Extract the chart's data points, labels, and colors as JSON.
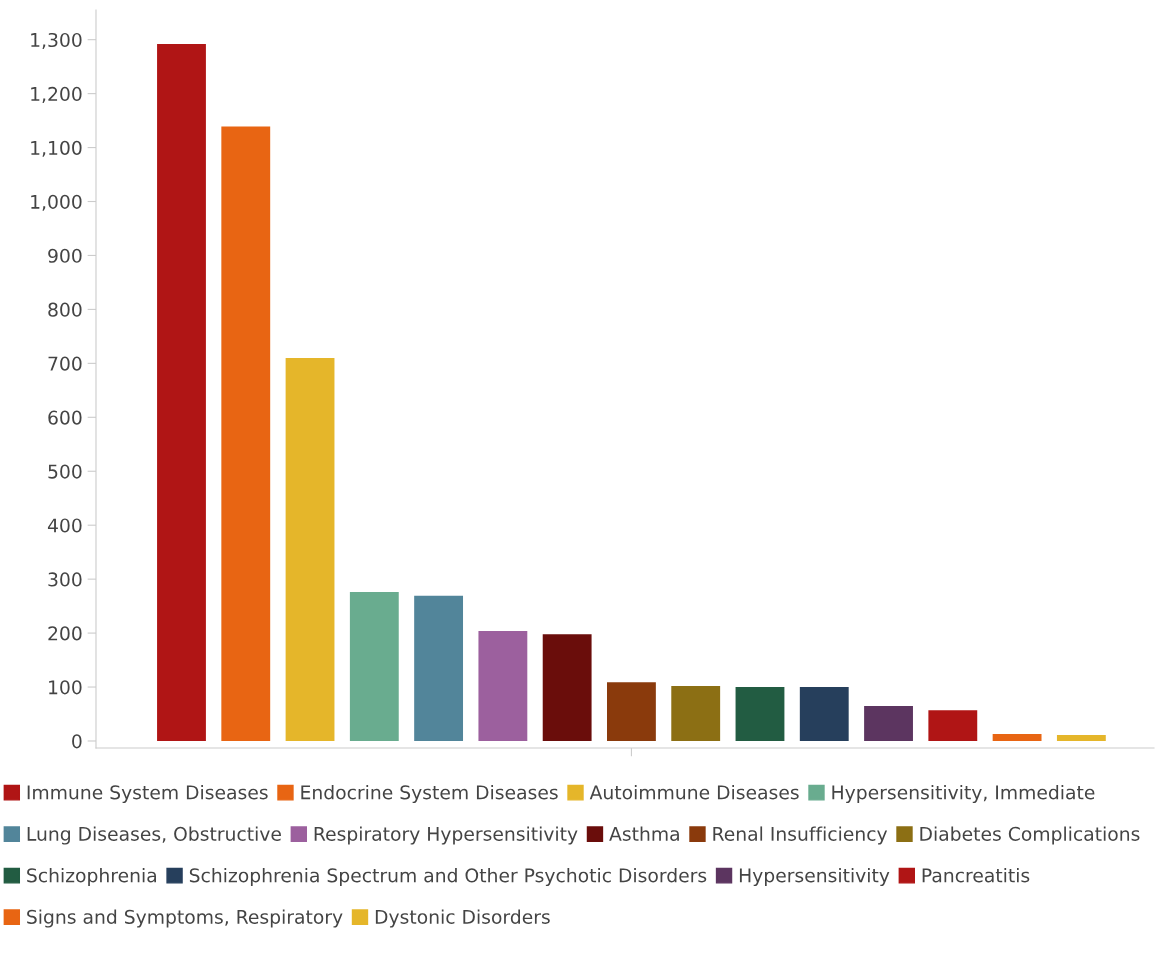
{
  "chart_data": {
    "type": "bar",
    "categories": [
      null,
      null,
      null,
      null,
      null,
      null,
      null,
      null,
      null,
      null,
      null,
      null,
      null,
      null,
      null
    ],
    "series": [
      {
        "name": "Immune System Diseases",
        "color": "#b01515",
        "values": [
          1292,
          null,
          null,
          null,
          null,
          null,
          null,
          null,
          null,
          null,
          null,
          null,
          null,
          null,
          null
        ]
      },
      {
        "name": "Endocrine System Diseases",
        "color": "#e86513",
        "values": [
          null,
          1139,
          null,
          null,
          null,
          null,
          null,
          null,
          null,
          null,
          null,
          null,
          null,
          null,
          null
        ]
      },
      {
        "name": "Autoimmune Diseases",
        "color": "#e5b62a",
        "values": [
          null,
          null,
          710,
          null,
          null,
          null,
          null,
          null,
          null,
          null,
          null,
          null,
          null,
          null,
          null
        ]
      },
      {
        "name": "Hypersensitivity, Immediate",
        "color": "#69ac8f",
        "values": [
          null,
          null,
          null,
          276,
          null,
          null,
          null,
          null,
          null,
          null,
          null,
          null,
          null,
          null,
          null
        ]
      },
      {
        "name": "Lung Diseases, Obstructive",
        "color": "#52859a",
        "values": [
          null,
          null,
          null,
          null,
          269,
          null,
          null,
          null,
          null,
          null,
          null,
          null,
          null,
          null,
          null
        ]
      },
      {
        "name": "Respiratory Hypersensitivity",
        "color": "#9c609e",
        "values": [
          null,
          null,
          null,
          null,
          null,
          204,
          null,
          null,
          null,
          null,
          null,
          null,
          null,
          null,
          null
        ]
      },
      {
        "name": "Asthma",
        "color": "#6a0d0b",
        "values": [
          null,
          null,
          null,
          null,
          null,
          null,
          198,
          null,
          null,
          null,
          null,
          null,
          null,
          null,
          null
        ]
      },
      {
        "name": "Renal Insufficiency",
        "color": "#8a3a0c",
        "values": [
          null,
          null,
          null,
          null,
          null,
          null,
          null,
          109,
          null,
          null,
          null,
          null,
          null,
          null,
          null
        ]
      },
      {
        "name": "Diabetes Complications",
        "color": "#8c6f14",
        "values": [
          null,
          null,
          null,
          null,
          null,
          null,
          null,
          null,
          102,
          null,
          null,
          null,
          null,
          null,
          null
        ]
      },
      {
        "name": "Schizophrenia",
        "color": "#225c42",
        "values": [
          null,
          null,
          null,
          null,
          null,
          null,
          null,
          null,
          null,
          100,
          null,
          null,
          null,
          null,
          null
        ]
      },
      {
        "name": "Schizophrenia Spectrum and Other Psychotic Disorders",
        "color": "#263f5c",
        "values": [
          null,
          null,
          null,
          null,
          null,
          null,
          null,
          null,
          null,
          null,
          100,
          null,
          null,
          null,
          null
        ]
      },
      {
        "name": "Hypersensitivity",
        "color": "#5c3560",
        "values": [
          null,
          null,
          null,
          null,
          null,
          null,
          null,
          null,
          null,
          null,
          null,
          65,
          null,
          null,
          null
        ]
      },
      {
        "name": "Pancreatitis",
        "color": "#b01515",
        "values": [
          null,
          null,
          null,
          null,
          null,
          null,
          null,
          null,
          null,
          null,
          null,
          null,
          57,
          null,
          null
        ]
      },
      {
        "name": "Signs and Symptoms, Respiratory",
        "color": "#e86513",
        "values": [
          null,
          null,
          null,
          null,
          null,
          null,
          null,
          null,
          null,
          null,
          null,
          null,
          null,
          13,
          null
        ]
      },
      {
        "name": "Dystonic Disorders",
        "color": "#e5b62a",
        "values": [
          null,
          null,
          null,
          null,
          null,
          null,
          null,
          null,
          null,
          null,
          null,
          null,
          null,
          null,
          11
        ]
      }
    ],
    "ylim": [
      -13,
      1355
    ],
    "yticks": [
      0,
      100,
      200,
      300,
      400,
      500,
      600,
      700,
      800,
      900,
      {
        "value": 1000,
        "label": "1,000"
      },
      {
        "value": 1100,
        "label": "1,100"
      },
      {
        "value": 1200,
        "label": "1,200"
      },
      {
        "value": 1300,
        "label": "1,300"
      }
    ],
    "stacked": true,
    "tick_labels": "y",
    "grid": false,
    "legend": "bottom"
  }
}
